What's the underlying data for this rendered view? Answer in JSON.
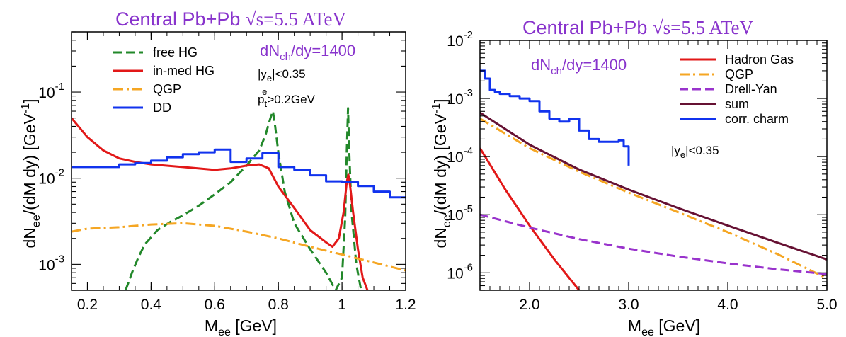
{
  "chart_data": [
    {
      "type": "line",
      "title": {
        "prefix": "Central Pb+Pb ",
        "sqrt": "√s=5.5 ATeV"
      },
      "xlabel": {
        "main": "M",
        "sub": "ee",
        "unit": " [GeV]"
      },
      "ylabel": {
        "a": "dN",
        "sub": "ee",
        "b": "/(dM dy) [GeV",
        "sup": "-1",
        "c": "]"
      },
      "xlim": [
        0.15,
        1.2
      ],
      "ylim": [
        0.0005,
        0.5
      ],
      "log_y": true,
      "grid": false,
      "legend_position": "top-left",
      "xticks": [
        {
          "v": 0.2,
          "label": "0.2"
        },
        {
          "v": 0.4,
          "label": "0.4"
        },
        {
          "v": 0.6,
          "label": "0.6"
        },
        {
          "v": 0.8,
          "label": "0.8"
        },
        {
          "v": 1.0,
          "label": "1"
        },
        {
          "v": 1.2,
          "label": "1.2"
        }
      ],
      "yticks": [
        {
          "v": 0.001,
          "base": "10",
          "exp": "-3"
        },
        {
          "v": 0.01,
          "base": "10",
          "exp": "-2"
        },
        {
          "v": 0.1,
          "base": "10",
          "exp": "-1"
        }
      ],
      "annotations": {
        "dnch": {
          "a": "dN",
          "sub": "ch",
          "b": "/dy=1400"
        },
        "ycut": {
          "a": "|y",
          "sub": "e",
          "b": "|<0.35"
        },
        "ptcut": {
          "a": "p",
          "sub": "t",
          "sup": "e",
          "b": ">0.2GeV"
        }
      },
      "series": [
        {
          "name": "free HG",
          "color": "#22882a",
          "dash": "dash",
          "step": false,
          "x": [
            0.32,
            0.34,
            0.36,
            0.38,
            0.42,
            0.46,
            0.5,
            0.55,
            0.6,
            0.65,
            0.7,
            0.74,
            0.76,
            0.775,
            0.783,
            0.79,
            0.8,
            0.82,
            0.85,
            0.9,
            0.95,
            0.98,
            1.0,
            1.01,
            1.015,
            1.019,
            1.023,
            1.03,
            1.045,
            1.06
          ],
          "y": [
            0.0005,
            0.0008,
            0.0012,
            0.0017,
            0.0025,
            0.0031,
            0.0037,
            0.0048,
            0.0065,
            0.009,
            0.014,
            0.021,
            0.032,
            0.05,
            0.06,
            0.04,
            0.02,
            0.007,
            0.003,
            0.0015,
            0.0008,
            0.0005,
            0.0007,
            0.0035,
            0.02,
            0.065,
            0.02,
            0.004,
            0.001,
            0.0005
          ]
        },
        {
          "name": "in-med HG",
          "color": "#e21818",
          "dash": "solid",
          "step": false,
          "x": [
            0.15,
            0.2,
            0.25,
            0.3,
            0.35,
            0.4,
            0.5,
            0.6,
            0.65,
            0.7,
            0.74,
            0.77,
            0.8,
            0.85,
            0.9,
            0.95,
            0.97,
            0.99,
            1.005,
            1.015,
            1.02,
            1.025,
            1.035,
            1.05,
            1.065,
            1.08
          ],
          "y": [
            0.05,
            0.03,
            0.021,
            0.017,
            0.0155,
            0.0145,
            0.0135,
            0.0125,
            0.013,
            0.014,
            0.0145,
            0.013,
            0.008,
            0.0045,
            0.0025,
            0.0018,
            0.0016,
            0.002,
            0.004,
            0.009,
            0.011,
            0.0085,
            0.004,
            0.0015,
            0.0007,
            0.0005
          ]
        },
        {
          "name": "QGP",
          "color": "#f5a623",
          "dash": "dashdot",
          "step": false,
          "x": [
            0.15,
            0.2,
            0.3,
            0.4,
            0.5,
            0.6,
            0.7,
            0.8,
            0.9,
            1.0,
            1.1,
            1.2
          ],
          "y": [
            0.0024,
            0.0026,
            0.0027,
            0.0029,
            0.003,
            0.0028,
            0.0024,
            0.002,
            0.0016,
            0.0013,
            0.00105,
            0.00085
          ]
        },
        {
          "name": "DD",
          "color": "#1133ee",
          "dash": "solid",
          "step": true,
          "x": [
            0.15,
            0.3,
            0.35,
            0.4,
            0.45,
            0.5,
            0.55,
            0.6,
            0.65,
            0.7,
            0.75,
            0.8,
            0.85,
            0.9,
            0.95,
            1.0,
            1.05,
            1.1,
            1.15,
            1.2
          ],
          "y": [
            0.0135,
            0.0145,
            0.015,
            0.016,
            0.0175,
            0.019,
            0.02,
            0.0215,
            0.0155,
            0.017,
            0.0195,
            0.0135,
            0.0125,
            0.0108,
            0.0092,
            0.009,
            0.0081,
            0.007,
            0.006,
            0.006
          ]
        }
      ]
    },
    {
      "type": "line",
      "title": {
        "prefix": "Central Pb+Pb ",
        "sqrt": "√s=5.5 ATeV"
      },
      "xlabel": {
        "main": "M",
        "sub": "ee",
        "unit": " [GeV]"
      },
      "ylabel": {
        "a": "dN",
        "sub": "ee",
        "b": "/(dM dy) [GeV",
        "sup": "-1",
        "c": "]"
      },
      "xlim": [
        1.5,
        5.0
      ],
      "ylim": [
        5e-07,
        0.01
      ],
      "log_y": true,
      "grid": false,
      "legend_position": "top-right",
      "xticks": [
        {
          "v": 2.0,
          "label": "2.0"
        },
        {
          "v": 3.0,
          "label": "3.0"
        },
        {
          "v": 4.0,
          "label": "4.0"
        },
        {
          "v": 5.0,
          "label": "5.0"
        }
      ],
      "yticks": [
        {
          "v": 1e-06,
          "base": "10",
          "exp": "-6"
        },
        {
          "v": 1e-05,
          "base": "10",
          "exp": "-5"
        },
        {
          "v": 0.0001,
          "base": "10",
          "exp": "-4"
        },
        {
          "v": 0.001,
          "base": "10",
          "exp": "-3"
        },
        {
          "v": 0.01,
          "base": "10",
          "exp": "-2"
        }
      ],
      "annotations": {
        "dnch": {
          "a": "dN",
          "sub": "ch",
          "b": "/dy=1400"
        },
        "ycut": {
          "a": "|y",
          "sub": "e",
          "b": "|<0.35"
        }
      },
      "series": [
        {
          "name": "Hadron Gas",
          "color": "#e21818",
          "dash": "solid",
          "step": false,
          "x": [
            1.5,
            1.75,
            2.0,
            2.25,
            2.5
          ],
          "y": [
            0.00014,
            2.8e-05,
            6.5e-06,
            1.7e-06,
            5e-07
          ]
        },
        {
          "name": "QGP",
          "color": "#f5a623",
          "dash": "dashdot",
          "step": false,
          "x": [
            1.5,
            2.0,
            2.5,
            3.0,
            3.5,
            4.0,
            4.5,
            5.0
          ],
          "y": [
            0.00045,
            0.00014,
            5.5e-05,
            2.4e-05,
            1.1e-05,
            5e-06,
            2.1e-06,
            8e-07
          ]
        },
        {
          "name": "Drell-Yan",
          "color": "#9933cc",
          "dash": "dash",
          "step": false,
          "x": [
            1.5,
            2.0,
            2.5,
            3.0,
            3.5,
            4.0,
            4.5,
            5.0
          ],
          "y": [
            1e-05,
            6e-06,
            3.8e-06,
            2.6e-06,
            1.9e-06,
            1.45e-06,
            1.15e-06,
            9.5e-07
          ]
        },
        {
          "name": "sum",
          "color": "#661133",
          "dash": "solid",
          "step": false,
          "x": [
            1.5,
            2.0,
            2.5,
            3.0,
            3.5,
            4.0,
            4.5,
            5.0
          ],
          "y": [
            0.00057,
            0.00016,
            6e-05,
            2.7e-05,
            1.3e-05,
            6.5e-06,
            3.3e-06,
            1.7e-06
          ]
        },
        {
          "name": "corr. charm",
          "color": "#1133ee",
          "dash": "solid",
          "step": true,
          "x": [
            1.5,
            1.55,
            1.6,
            1.65,
            1.7,
            1.8,
            1.9,
            2.0,
            2.1,
            2.2,
            2.3,
            2.4,
            2.5,
            2.6,
            2.7,
            2.8,
            2.9,
            2.95,
            3.0
          ],
          "y": [
            0.003,
            0.0022,
            0.0014,
            0.0013,
            0.0012,
            0.0011,
            0.001,
            0.0009,
            0.0006,
            0.00045,
            0.0004,
            0.00045,
            0.00028,
            0.0002,
            0.00018,
            0.00018,
            0.00019,
            0.00015,
            7e-05
          ]
        }
      ]
    }
  ]
}
